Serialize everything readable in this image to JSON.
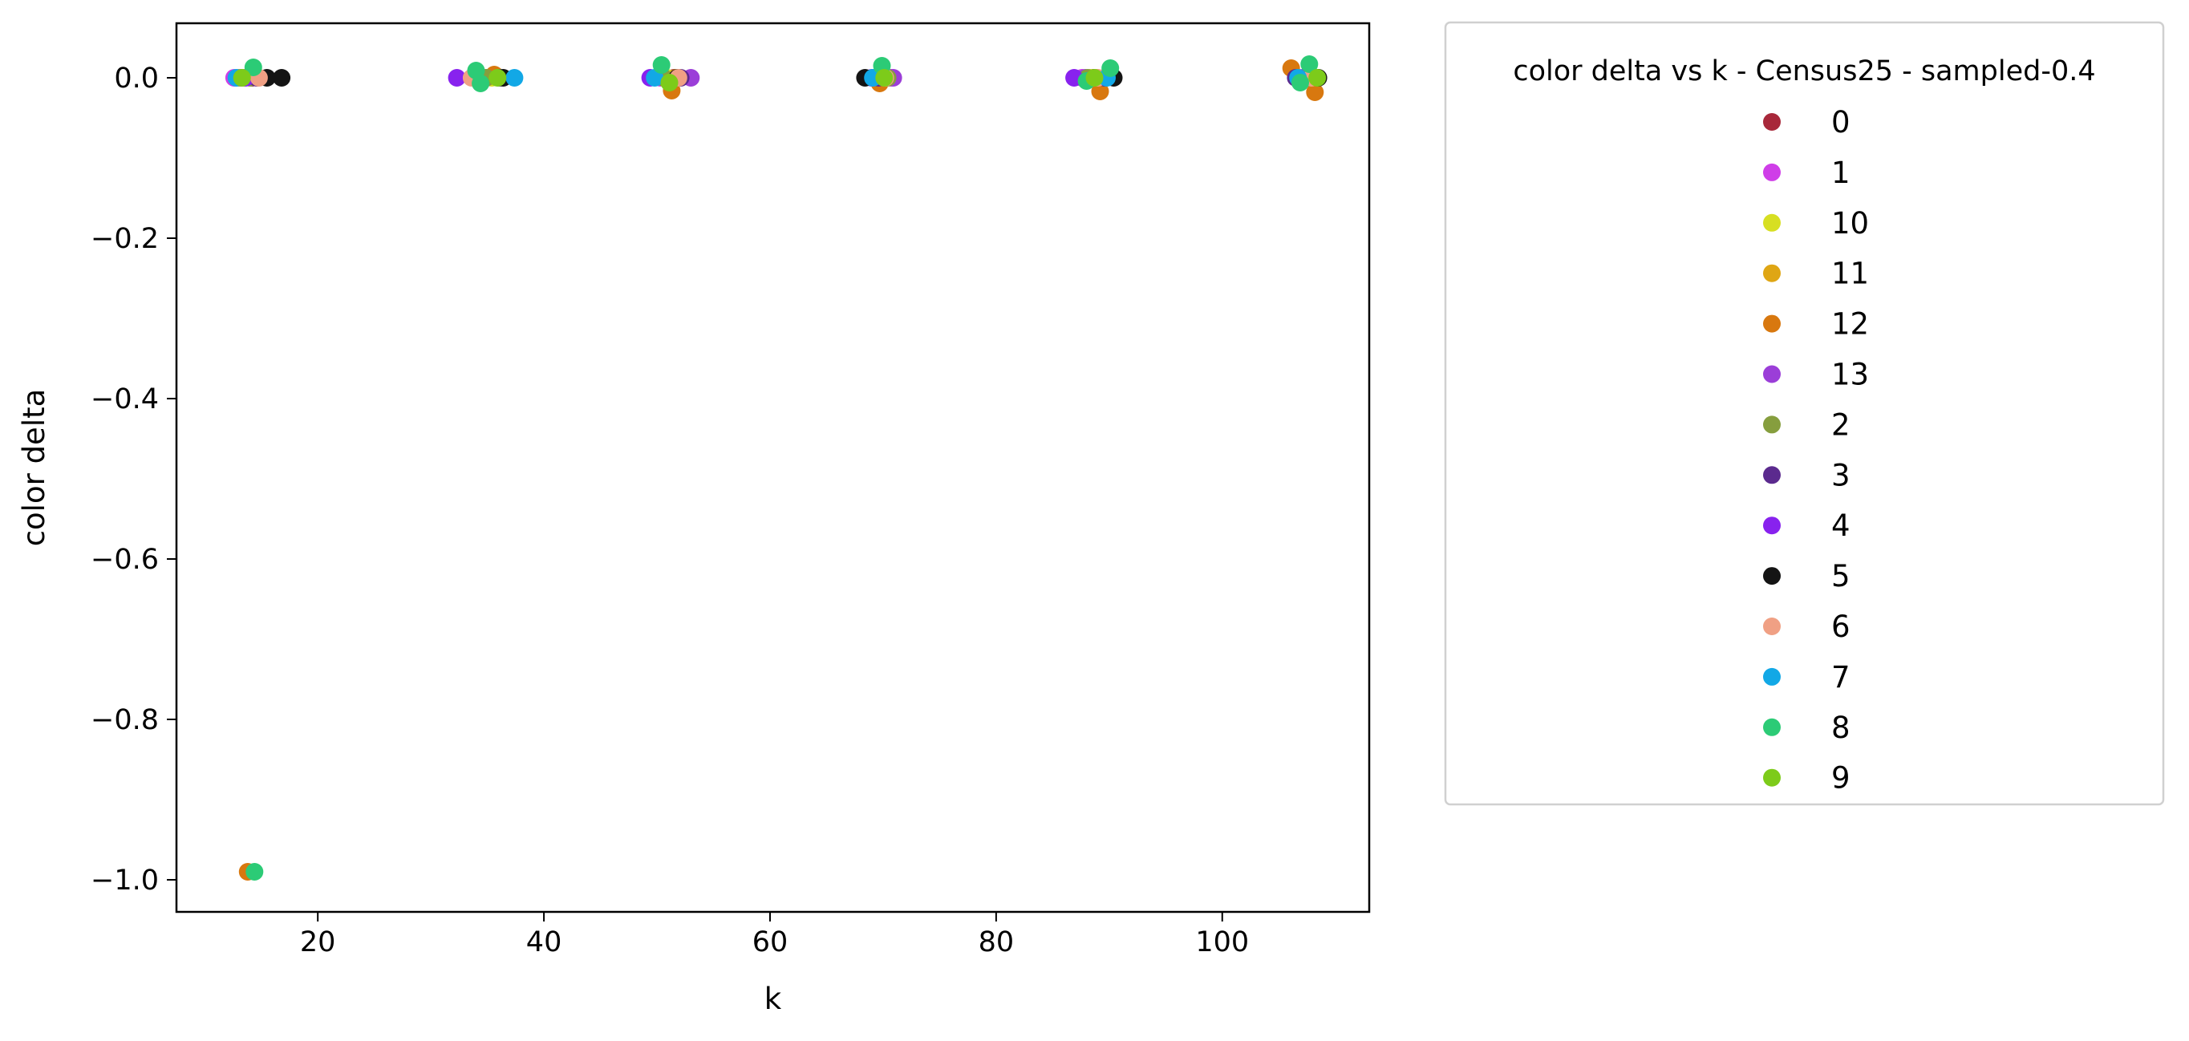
{
  "chart_data": {
    "type": "scatter",
    "xlabel": "k",
    "ylabel": "color delta",
    "xlim": [
      7.5,
      113
    ],
    "ylim": [
      -1.04,
      0.068
    ],
    "xticks": [
      20,
      40,
      60,
      80,
      100
    ],
    "yticks": [
      0.0,
      -0.2,
      -0.4,
      -0.6,
      -0.8,
      -1.0
    ],
    "xtick_labels": [
      "20",
      "40",
      "60",
      "80",
      "100"
    ],
    "ytick_labels": [
      "0.0",
      "−0.2",
      "−0.4",
      "−0.6",
      "−0.8",
      "−1.0"
    ],
    "grid": false,
    "legend": {
      "title": "color delta vs k - Census25 - sampled-0.4",
      "placement": "outside upper right"
    },
    "series": [
      {
        "name": "0",
        "color": "#a8283a",
        "points": [
          [
            14.2,
            0
          ],
          [
            34.3,
            0
          ],
          [
            51.5,
            0
          ],
          [
            70.0,
            0
          ],
          [
            88.6,
            0
          ],
          [
            107.4,
            0
          ]
        ]
      },
      {
        "name": "1",
        "color": "#cf3ee8",
        "points": [
          [
            12.6,
            0
          ],
          [
            35.0,
            0
          ],
          [
            50.3,
            0
          ],
          [
            70.7,
            0
          ],
          [
            87.6,
            0
          ],
          [
            106.8,
            0
          ]
        ]
      },
      {
        "name": "10",
        "color": "#d7df22",
        "points": [
          [
            13.4,
            0
          ],
          [
            35.4,
            0
          ],
          [
            50.9,
            0
          ],
          [
            69.8,
            0
          ],
          [
            88.3,
            0
          ],
          [
            107.8,
            0
          ]
        ]
      },
      {
        "name": "11",
        "color": "#dfa614",
        "points": [
          [
            13.0,
            0
          ],
          [
            35.7,
            0.003
          ],
          [
            51.7,
            0
          ],
          [
            69.3,
            0
          ],
          [
            88.9,
            0
          ],
          [
            108.0,
            0
          ]
        ]
      },
      {
        "name": "12",
        "color": "#d8780f",
        "points": [
          [
            13.8,
            -0.99
          ],
          [
            35.6,
            0.004
          ],
          [
            51.3,
            -0.016
          ],
          [
            69.7,
            -0.007
          ],
          [
            89.2,
            -0.017
          ],
          [
            106.1,
            0.012
          ],
          [
            108.2,
            -0.018
          ]
        ]
      },
      {
        "name": "13",
        "color": "#9b3ed8",
        "points": [
          [
            13.2,
            0
          ],
          [
            34.7,
            0
          ],
          [
            53.0,
            0
          ],
          [
            70.9,
            0
          ],
          [
            87.9,
            0
          ],
          [
            107.1,
            0
          ]
        ]
      },
      {
        "name": "2",
        "color": "#869e3e",
        "points": [
          [
            14.0,
            0
          ],
          [
            34.9,
            0
          ],
          [
            50.6,
            0
          ],
          [
            70.4,
            0
          ],
          [
            88.1,
            0
          ],
          [
            107.6,
            0
          ]
        ]
      },
      {
        "name": "3",
        "color": "#5b2a8e",
        "points": [
          [
            14.6,
            0
          ],
          [
            36.1,
            0
          ],
          [
            52.1,
            0
          ],
          [
            69.6,
            0
          ],
          [
            89.6,
            0
          ],
          [
            106.5,
            0
          ]
        ]
      },
      {
        "name": "4",
        "color": "#8822ee",
        "points": [
          [
            13.6,
            0
          ],
          [
            32.3,
            0
          ],
          [
            49.4,
            0
          ],
          [
            69.0,
            0
          ],
          [
            86.9,
            0
          ],
          [
            107.3,
            0
          ]
        ]
      },
      {
        "name": "5",
        "color": "#141414",
        "points": [
          [
            15.5,
            0
          ],
          [
            16.8,
            0
          ],
          [
            36.4,
            0
          ],
          [
            51.8,
            0
          ],
          [
            68.4,
            0
          ],
          [
            90.4,
            0
          ],
          [
            108.5,
            0
          ]
        ]
      },
      {
        "name": "6",
        "color": "#f0a084",
        "points": [
          [
            14.8,
            0
          ],
          [
            33.6,
            0
          ],
          [
            51.9,
            0
          ],
          [
            70.2,
            0
          ],
          [
            89.0,
            0
          ],
          [
            107.9,
            0
          ]
        ]
      },
      {
        "name": "7",
        "color": "#12a8e6",
        "points": [
          [
            12.8,
            0
          ],
          [
            37.4,
            0
          ],
          [
            49.8,
            0
          ],
          [
            69.1,
            0
          ],
          [
            89.8,
            0
          ],
          [
            106.7,
            0
          ]
        ]
      },
      {
        "name": "8",
        "color": "#2ccb76",
        "points": [
          [
            14.3,
            0.013
          ],
          [
            14.4,
            -0.99
          ],
          [
            34.0,
            0.009
          ],
          [
            34.4,
            -0.007
          ],
          [
            50.4,
            0.016
          ],
          [
            69.9,
            0.015
          ],
          [
            88.0,
            -0.004
          ],
          [
            90.1,
            0.012
          ],
          [
            107.7,
            0.017
          ],
          [
            106.9,
            -0.006
          ]
        ]
      },
      {
        "name": "9",
        "color": "#7dcb1a",
        "points": [
          [
            13.3,
            0
          ],
          [
            35.9,
            0
          ],
          [
            51.1,
            -0.006
          ],
          [
            70.1,
            0
          ],
          [
            88.7,
            0
          ],
          [
            108.4,
            0
          ]
        ]
      }
    ]
  }
}
